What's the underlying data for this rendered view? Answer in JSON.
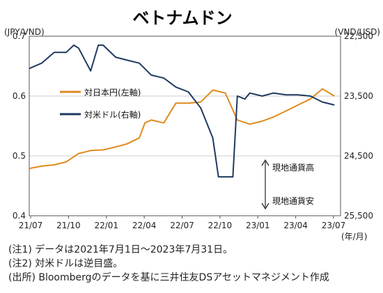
{
  "chart_data": {
    "type": "line",
    "title": "ベトナムドン",
    "left_axis_label": "(JPY/VND)",
    "right_axis_label": "(VND/USD)",
    "x_unit_label": "(年/月)",
    "x_ticks": [
      "21/07",
      "21/10",
      "22/01",
      "22/04",
      "22/07",
      "22/10",
      "23/01",
      "23/04",
      "23/07"
    ],
    "y_left": {
      "range": [
        0.4,
        0.7
      ],
      "ticks": [
        "0.4",
        "0.5",
        "0.6",
        "0.7"
      ]
    },
    "y_right": {
      "range": [
        22500,
        25500
      ],
      "inverted": true,
      "ticks": [
        "22,500",
        "23,500",
        "24,500",
        "25,500"
      ]
    },
    "grid": true,
    "legend_position": "upper-left",
    "annotations": {
      "up": "現地通貨高",
      "down": "現地通貨安"
    },
    "series": [
      {
        "name": "対日本円(左軸)",
        "axis": "left",
        "color": "#E08A1E",
        "x": [
          "2021-07-01",
          "2021-08-01",
          "2021-09-01",
          "2021-10-01",
          "2021-11-01",
          "2021-12-01",
          "2022-01-01",
          "2022-02-01",
          "2022-03-01",
          "2022-04-01",
          "2022-04-15",
          "2022-05-01",
          "2022-06-01",
          "2022-07-01",
          "2022-08-01",
          "2022-09-01",
          "2022-10-01",
          "2022-10-20",
          "2022-11-01",
          "2022-12-01",
          "2023-01-01",
          "2023-02-01",
          "2023-03-01",
          "2023-04-01",
          "2023-05-01",
          "2023-06-01",
          "2023-07-01",
          "2023-07-31"
        ],
        "values": [
          0.479,
          0.483,
          0.485,
          0.49,
          0.504,
          0.509,
          0.51,
          0.515,
          0.52,
          0.53,
          0.555,
          0.56,
          0.555,
          0.588,
          0.588,
          0.59,
          0.61,
          0.607,
          0.605,
          0.56,
          0.553,
          0.558,
          0.565,
          0.575,
          0.585,
          0.595,
          0.612,
          0.6
        ]
      },
      {
        "name": "対米ドル(右軸)",
        "axis": "right",
        "color": "#1F3A60",
        "x": [
          "2021-07-01",
          "2021-08-01",
          "2021-09-01",
          "2021-10-01",
          "2021-10-20",
          "2021-11-01",
          "2021-12-01",
          "2021-12-20",
          "2022-01-01",
          "2022-02-01",
          "2022-03-01",
          "2022-04-01",
          "2022-05-01",
          "2022-06-01",
          "2022-07-01",
          "2022-08-01",
          "2022-09-01",
          "2022-10-01",
          "2022-10-15",
          "2022-11-01",
          "2022-11-20",
          "2022-12-01",
          "2022-12-20",
          "2023-01-01",
          "2023-02-01",
          "2023-03-01",
          "2023-04-01",
          "2023-05-01",
          "2023-06-01",
          "2023-07-01",
          "2023-07-31"
        ],
        "values": [
          23040,
          22950,
          22770,
          22770,
          22650,
          22700,
          23080,
          22650,
          22650,
          22850,
          22900,
          22950,
          23150,
          23200,
          23350,
          23430,
          23700,
          24200,
          24850,
          24850,
          24850,
          23500,
          23550,
          23450,
          23500,
          23450,
          23480,
          23480,
          23500,
          23600,
          23650
        ]
      }
    ]
  },
  "notes": [
    "(注1) データは2021年7月1日〜2023年7月31日。",
    "(注2) 対米ドルは逆目盛。",
    "(出所) Bloombergのデータを基に三井住友DSアセットマネジメント作成"
  ]
}
